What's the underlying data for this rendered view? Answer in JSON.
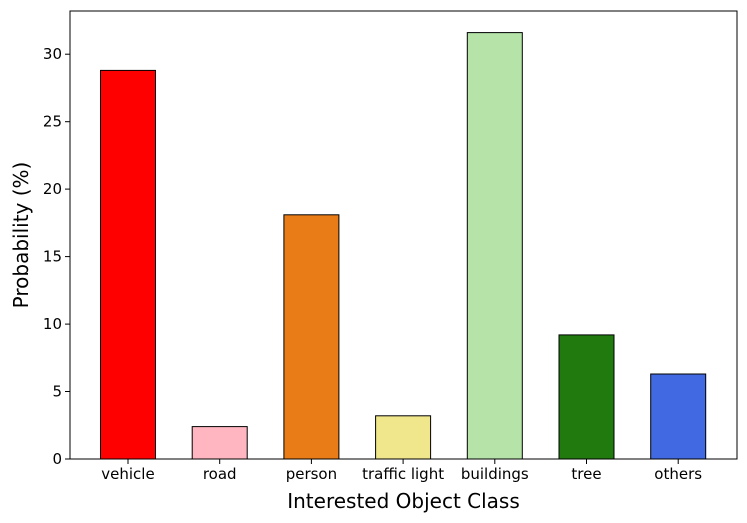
{
  "chart_data": {
    "type": "bar",
    "title": "",
    "xlabel": "Interested Object Class",
    "ylabel": "Probability (%)",
    "categories": [
      "vehicle",
      "road",
      "person",
      "traffic light",
      "buildings",
      "tree",
      "others"
    ],
    "values": [
      28.8,
      2.4,
      18.1,
      3.2,
      31.6,
      9.2,
      6.3
    ],
    "colors": [
      "#ff0000",
      "#ffb6c1",
      "#e97c16",
      "#f0e68c",
      "#b5e3a8",
      "#207a0e",
      "#4169e1"
    ],
    "ylim": [
      0,
      33.2
    ],
    "yticks": [
      0,
      5,
      10,
      15,
      20,
      25,
      30
    ],
    "grid": false,
    "legend": "none"
  }
}
